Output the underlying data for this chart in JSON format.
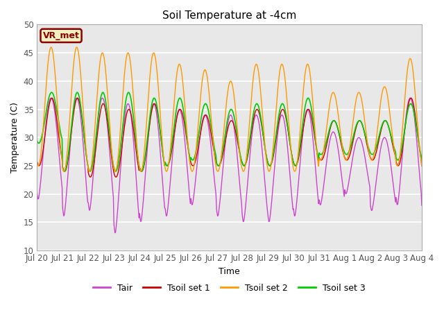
{
  "title": "Soil Temperature at -4cm",
  "xlabel": "Time",
  "ylabel": "Temperature (C)",
  "ylim": [
    10,
    50
  ],
  "background_color": "#e8e8e8",
  "annotation_text": "VR_met",
  "annotation_color": "#8B0000",
  "annotation_bg": "#f0f0c0",
  "tick_labels": [
    "Jul 20",
    "Jul 21",
    "Jul 22",
    "Jul 23",
    "Jul 24",
    "Jul 25",
    "Jul 26",
    "Jul 27",
    "Jul 28",
    "Jul 29",
    "Jul 30",
    "Jul 31",
    "Aug 1",
    "Aug 2",
    "Aug 3",
    "Aug 4"
  ],
  "colors": {
    "Tair": "#cc44cc",
    "Tsoil1": "#cc0000",
    "Tsoil2": "#ff9900",
    "Tsoil3": "#00cc00"
  },
  "legend_labels": [
    "Tair",
    "Tsoil set 1",
    "Tsoil set 2",
    "Tsoil set 3"
  ],
  "yticks": [
    10,
    15,
    20,
    25,
    30,
    35,
    40,
    45,
    50
  ]
}
